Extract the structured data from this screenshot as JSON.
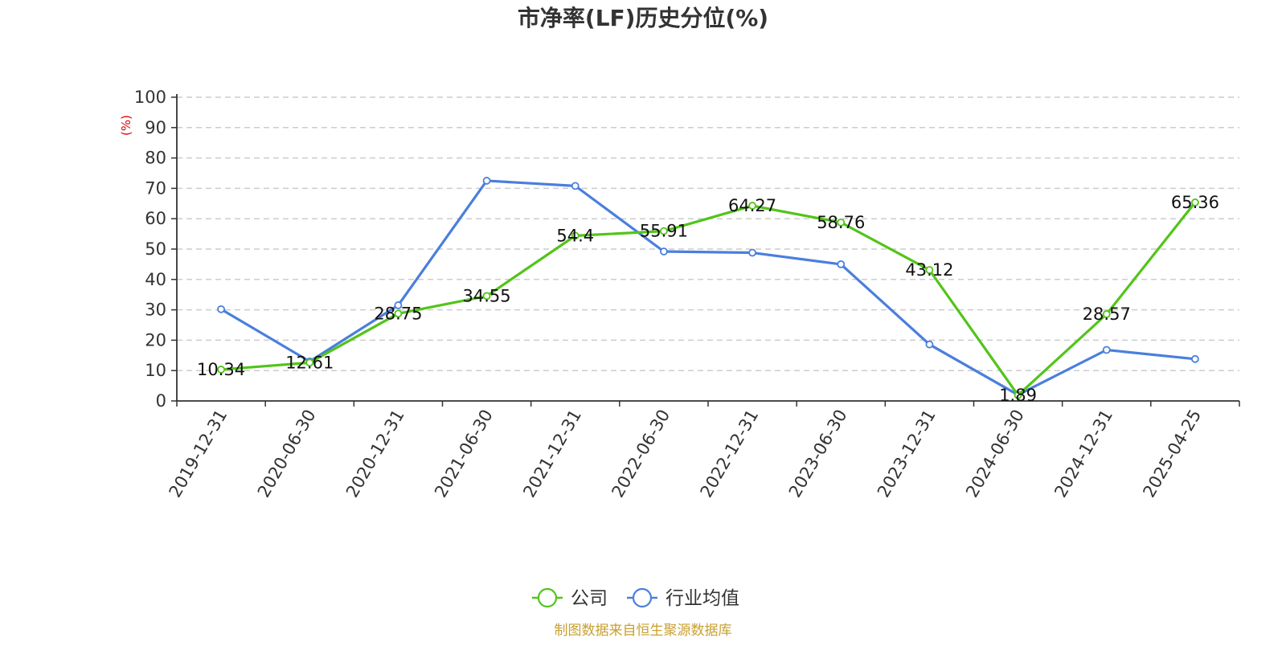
{
  "chart_data": {
    "type": "line",
    "title": "市净率(LF)历史分位(%)",
    "ylabel": "(%)",
    "xlabel": "",
    "ylim": [
      0,
      100
    ],
    "yticks": [
      0,
      10,
      20,
      30,
      40,
      50,
      60,
      70,
      80,
      90,
      100
    ],
    "grid": true,
    "legend_position": "bottom-center",
    "categories": [
      "2019-12-31",
      "2020-06-30",
      "2020-12-31",
      "2021-06-30",
      "2021-12-31",
      "2022-06-30",
      "2022-12-31",
      "2023-06-30",
      "2023-12-31",
      "2024-06-30",
      "2024-12-31",
      "2025-04-25"
    ],
    "series": [
      {
        "name": "公司",
        "color": "#52c41a",
        "values": [
          10.34,
          12.61,
          28.75,
          34.55,
          54.4,
          55.91,
          64.27,
          58.76,
          43.12,
          1.89,
          28.57,
          65.36
        ],
        "labels": [
          "10.34",
          "12.61",
          "28.75",
          "34.55",
          "54.4",
          "55.91",
          "64.27",
          "58.76",
          "43.12",
          "1.89",
          "28.57",
          "65.36"
        ]
      },
      {
        "name": "行业均值",
        "color": "#4a7fdc",
        "values": [
          30.2,
          13.0,
          31.5,
          72.5,
          70.8,
          49.2,
          48.8,
          45.0,
          18.6,
          2.0,
          16.8,
          13.8
        ]
      }
    ],
    "source": "制图数据来自恒生聚源数据库",
    "source_color": "#c8a032",
    "ylabel_color": "#e00000"
  }
}
